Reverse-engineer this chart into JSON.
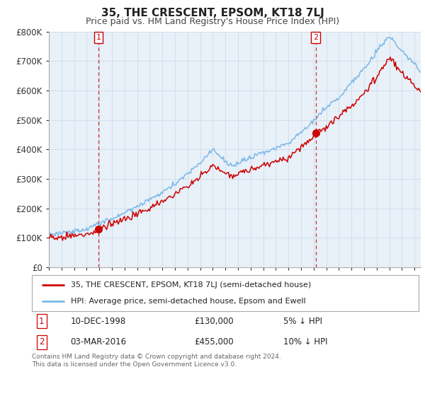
{
  "title": "35, THE CRESCENT, EPSOM, KT18 7LJ",
  "subtitle": "Price paid vs. HM Land Registry's House Price Index (HPI)",
  "ylabel_ticks": [
    "£0",
    "£100K",
    "£200K",
    "£300K",
    "£400K",
    "£500K",
    "£600K",
    "£700K",
    "£800K"
  ],
  "ytick_values": [
    0,
    100000,
    200000,
    300000,
    400000,
    500000,
    600000,
    700000,
    800000
  ],
  "ylim": [
    0,
    800000
  ],
  "xlim_start": 1995.0,
  "xlim_end": 2024.5,
  "hpi_color": "#7ab8e8",
  "price_color": "#cc0000",
  "dashed_color": "#cc0000",
  "point1_x": 1998.94,
  "point1_y": 130000,
  "point2_x": 2016.17,
  "point2_y": 455000,
  "legend_line1": "35, THE CRESCENT, EPSOM, KT18 7LJ (semi-detached house)",
  "legend_line2": "HPI: Average price, semi-detached house, Epsom and Ewell",
  "table_row1": [
    "1",
    "10-DEC-1998",
    "£130,000",
    "5% ↓ HPI"
  ],
  "table_row2": [
    "2",
    "03-MAR-2016",
    "£455,000",
    "10% ↓ HPI"
  ],
  "footer": "Contains HM Land Registry data © Crown copyright and database right 2024.\nThis data is licensed under the Open Government Licence v3.0.",
  "bg_color": "#ffffff",
  "chart_bg": "#e8f0f8",
  "grid_color": "#c8d8e8"
}
